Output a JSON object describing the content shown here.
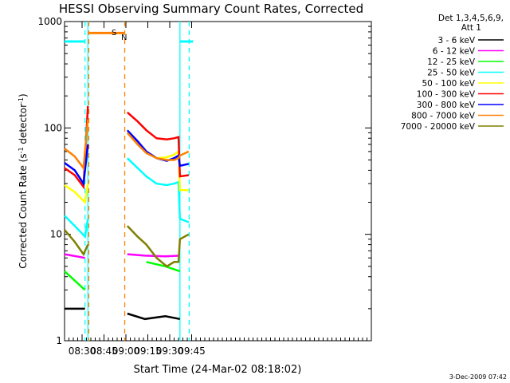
{
  "chart_data": {
    "type": "line",
    "title": "HESSI Observing Summary Count Rates, Corrected",
    "xlabel": "Start Time (24-Mar-02 08:18:02)",
    "ylabel": "Corrected Count Rate (s⁻¹ detector⁻¹)",
    "ylabel_parts": {
      "main": "Corrected Count Rate (s",
      "sup1": "-1",
      "mid": " detector",
      "sup2": "-1",
      "end": ")"
    },
    "x_unit": "minutes after 08:18:02",
    "xlim": [
      0,
      210
    ],
    "ylim": [
      1,
      1000
    ],
    "yscale": "log",
    "grid": false,
    "legend_placement": "right",
    "x_ticks": [
      {
        "label": "08:30",
        "x": 12
      },
      {
        "label": "08:45",
        "x": 27
      },
      {
        "label": "09:00",
        "x": 42
      },
      {
        "label": "09:15",
        "x": 57
      },
      {
        "label": "09:30",
        "x": 72
      },
      {
        "label": "09:45",
        "x": 87
      }
    ],
    "y_ticks": [
      {
        "label": "1",
        "value": 1
      },
      {
        "label": "10",
        "value": 10
      },
      {
        "label": "100",
        "value": 100
      },
      {
        "label": "1000",
        "value": 1000
      }
    ],
    "legend_title_lines": [
      "Det 1,3,4,5,6,9,",
      "Att 1"
    ],
    "annotations": {
      "saa_marker": "S",
      "night_marker": "N"
    },
    "footer_date": "3-Dec-2009 07:42",
    "series": [
      {
        "name": "3 - 6 keV",
        "color": "#000000",
        "pre": [
          [
            0,
            2.0
          ],
          [
            14,
            2.0
          ]
        ],
        "post": [
          [
            43,
            1.8
          ],
          [
            55,
            1.6
          ],
          [
            69,
            1.7
          ],
          [
            79,
            1.6
          ]
        ]
      },
      {
        "name": "6 - 12 keV",
        "color": "#ff00ff",
        "pre": [
          [
            0,
            6.5
          ],
          [
            14,
            6.0
          ]
        ],
        "post": [
          [
            43,
            6.5
          ],
          [
            55,
            6.3
          ],
          [
            69,
            6.2
          ],
          [
            79,
            6.3
          ]
        ]
      },
      {
        "name": "12 - 25 keV",
        "color": "#00ff00",
        "pre": [
          [
            0,
            4.5
          ],
          [
            14,
            3.0
          ]
        ],
        "post": [
          [
            56,
            5.5
          ],
          [
            69,
            5.0
          ],
          [
            79,
            4.5
          ]
        ]
      },
      {
        "name": "25 - 50 keV",
        "color": "#00ffff",
        "pre": [
          [
            0,
            15
          ],
          [
            7,
            12
          ],
          [
            14,
            9.5
          ],
          [
            16,
            14
          ]
        ],
        "post": [
          [
            43,
            52
          ],
          [
            50,
            42
          ],
          [
            56,
            35
          ],
          [
            63,
            30
          ],
          [
            70,
            29
          ],
          [
            75,
            30
          ],
          [
            78,
            31
          ],
          [
            79,
            14
          ],
          [
            85,
            13
          ]
        ]
      },
      {
        "name": "50 - 100 keV",
        "color": "#ffff00",
        "pre": [
          [
            0,
            29
          ],
          [
            7,
            25
          ],
          [
            14,
            20
          ],
          [
            16,
            30
          ]
        ],
        "post": [
          [
            43,
            90
          ],
          [
            50,
            72
          ],
          [
            56,
            60
          ],
          [
            63,
            52
          ],
          [
            70,
            53
          ],
          [
            75,
            56
          ],
          [
            78,
            60
          ],
          [
            79,
            26
          ],
          [
            85,
            26
          ]
        ]
      },
      {
        "name": "100 - 300 keV",
        "color": "#ff0000",
        "pre": [
          [
            0,
            42
          ],
          [
            7,
            36
          ],
          [
            13,
            28
          ],
          [
            16,
            160
          ]
        ],
        "post": [
          [
            43,
            140
          ],
          [
            50,
            115
          ],
          [
            56,
            95
          ],
          [
            63,
            80
          ],
          [
            70,
            78
          ],
          [
            75,
            80
          ],
          [
            78,
            82
          ],
          [
            79,
            35
          ],
          [
            85,
            36
          ]
        ]
      },
      {
        "name": "300 - 800 keV",
        "color": "#0000ff",
        "pre": [
          [
            0,
            47
          ],
          [
            7,
            40
          ],
          [
            13,
            30
          ],
          [
            16,
            70
          ]
        ],
        "post": [
          [
            43,
            95
          ],
          [
            50,
            75
          ],
          [
            56,
            60
          ],
          [
            63,
            52
          ],
          [
            70,
            49
          ],
          [
            75,
            52
          ],
          [
            78,
            55
          ],
          [
            79,
            44
          ],
          [
            85,
            46
          ]
        ]
      },
      {
        "name": "800 - 7000 keV",
        "color": "#ff8000",
        "pre": [
          [
            0,
            64
          ],
          [
            7,
            54
          ],
          [
            13,
            42
          ],
          [
            16,
            120
          ]
        ],
        "post": [
          [
            43,
            90
          ],
          [
            50,
            70
          ],
          [
            56,
            58
          ],
          [
            63,
            52
          ],
          [
            70,
            50
          ],
          [
            75,
            50
          ],
          [
            78,
            52
          ],
          [
            79,
            55
          ],
          [
            85,
            60
          ]
        ]
      },
      {
        "name": "7000 - 20000 keV",
        "color": "#808000",
        "pre": [
          [
            0,
            11
          ],
          [
            7,
            8.5
          ],
          [
            13,
            6.5
          ],
          [
            16,
            8
          ]
        ],
        "post": [
          [
            43,
            12
          ],
          [
            50,
            9.5
          ],
          [
            56,
            8
          ],
          [
            63,
            6
          ],
          [
            70,
            5
          ],
          [
            75,
            5.5
          ],
          [
            78,
            5.5
          ],
          [
            79,
            9
          ],
          [
            85,
            10
          ]
        ]
      }
    ],
    "attenuator_levels": [
      {
        "color": "#00ffff",
        "value": 650,
        "ranges": [
          [
            0,
            14
          ],
          [
            79,
            88
          ]
        ]
      },
      {
        "color": "#ff8000",
        "value": 780,
        "ranges": [
          [
            16,
            41
          ]
        ]
      }
    ],
    "vertical_markers": [
      {
        "color": "#00ffff",
        "style": "dashed",
        "x": 14
      },
      {
        "color": "#00ffff",
        "style": "solid",
        "x": 16
      },
      {
        "color": "#ff8000",
        "style": "dashed",
        "x": 16.6
      },
      {
        "color": "#ff8000",
        "style": "dashed",
        "x": 41.2
      },
      {
        "color": "#00ffff",
        "style": "solid",
        "x": 79
      },
      {
        "color": "#00ffff",
        "style": "dashed",
        "x": 85.3
      }
    ]
  }
}
